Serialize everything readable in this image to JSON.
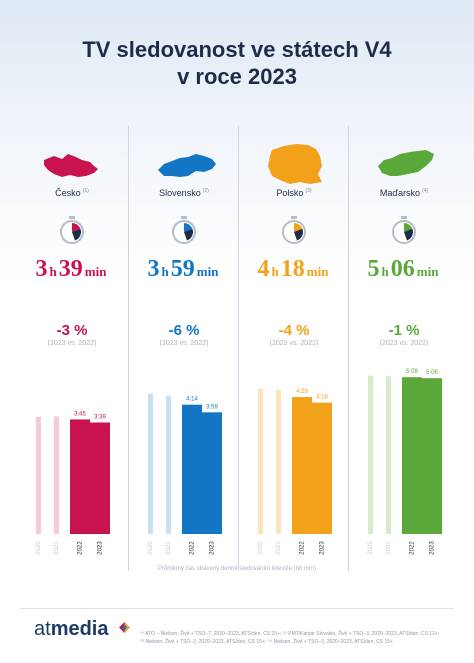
{
  "title_line1": "TV sledovanost ve státech V4",
  "title_line2": "v roce 2023",
  "countries": [
    {
      "name": "Česko",
      "note_ref": "(1)",
      "hours": "3",
      "minutes": "39",
      "change": "-3 %",
      "comparison": "(2023 vs. 2022)",
      "color": "#c8134e",
      "light_color": "#f4ccd8",
      "map_icon": "czechia-map-icon"
    },
    {
      "name": "Slovensko",
      "note_ref": "(2)",
      "hours": "3",
      "minutes": "59",
      "change": "-6 %",
      "comparison": "(2023 vs. 2022)",
      "color": "#1276c4",
      "light_color": "#c7e1f3",
      "map_icon": "slovakia-map-icon"
    },
    {
      "name": "Polsko",
      "note_ref": "(3)",
      "hours": "4",
      "minutes": "18",
      "change": "-4 %",
      "comparison": "(2023 vs. 2022)",
      "color": "#f2a11a",
      "light_color": "#fbe4bc",
      "map_icon": "poland-map-icon"
    },
    {
      "name": "Maďarsko",
      "note_ref": "(4)",
      "hours": "5",
      "minutes": "06",
      "change": "-1 %",
      "comparison": "(2023 vs. 2022)",
      "color": "#5aa83a",
      "light_color": "#d7ebcb",
      "map_icon": "hungary-map-icon"
    }
  ],
  "unit_hours": "h",
  "unit_minutes": "min",
  "chart_data": {
    "type": "bar",
    "categories": [
      "2020",
      "2021",
      "2022",
      "2023"
    ],
    "y_unit": "minutes per day",
    "ylim": [
      0,
      330
    ],
    "panels": [
      {
        "country": "Česko",
        "values": [
          230,
          231,
          225,
          219
        ],
        "labels": [
          "",
          "",
          "3:45",
          "3:39"
        ]
      },
      {
        "country": "Slovensko",
        "values": [
          276,
          272,
          254,
          239
        ],
        "labels": [
          "",
          "",
          "4:14",
          "3:59"
        ]
      },
      {
        "country": "Polsko",
        "values": [
          286,
          283,
          269,
          258
        ],
        "labels": [
          "",
          "",
          "4:29",
          "4:18"
        ]
      },
      {
        "country": "Maďarsko",
        "values": [
          311,
          310,
          308,
          306
        ],
        "labels": [
          "",
          "",
          "5:08",
          "5:06"
        ]
      }
    ]
  },
  "chart_caption": "Průměrný čas strávený denně sledováním televize (hh:mm)",
  "logo": {
    "brand_light": "at",
    "brand_bold": "media"
  },
  "sources": "⁽¹⁾ ATO – Nielsen, Živě + TSO–7, 2020–2023, ATS/den, CS 15+; ⁽²⁾ PMT/Kantar Slovakia, Živě + TSO–3, 2020–2023, ATS/den, CS 12+; ⁽³⁾ Nielsen, Živě + TSO–3, 2020–2023, ATS/den, CS 15+; ⁽⁴⁾ Nielsen, Živě + TSO–3, 2020–2023, ATS/den, CS 15+"
}
